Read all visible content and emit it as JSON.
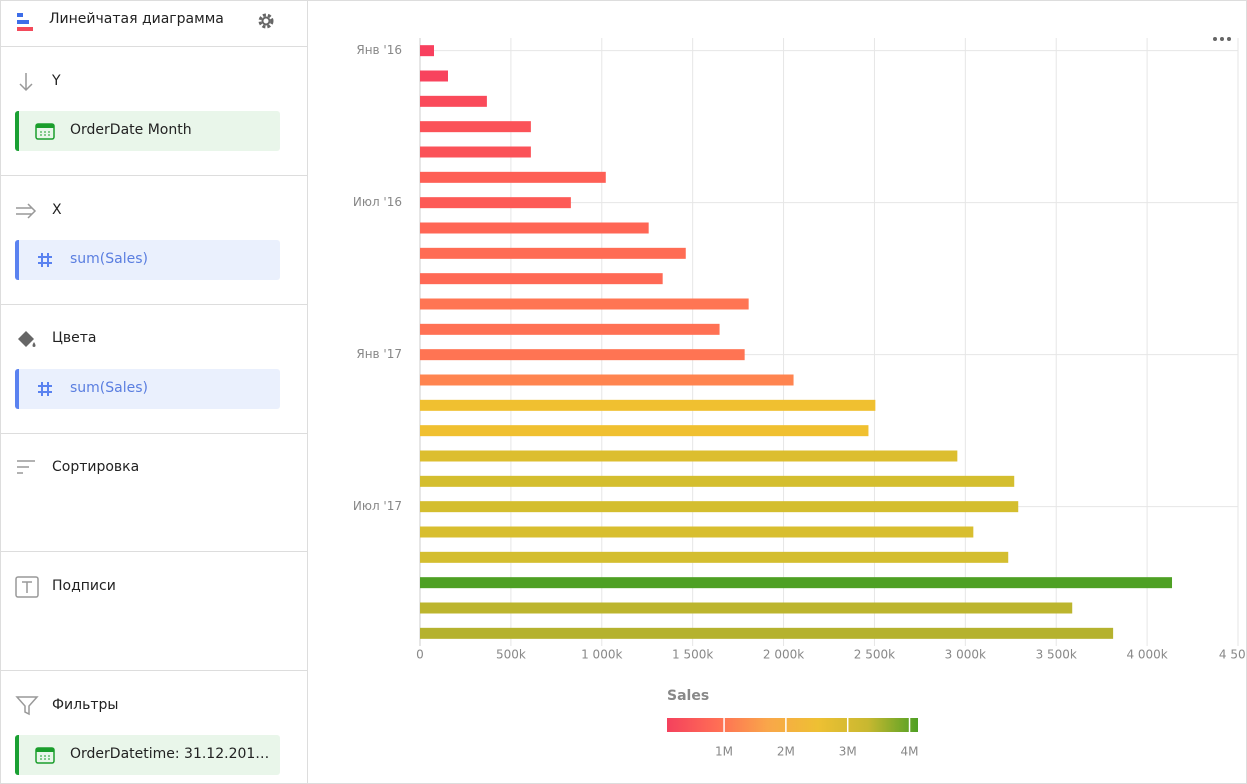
{
  "sidebar": {
    "title": "Линейчатая диаграмма",
    "sections": [
      {
        "label": "Y",
        "item": "OrderDate Month"
      },
      {
        "label": "X",
        "item": "sum(Sales)"
      },
      {
        "label": "Цвета",
        "item": "sum(Sales)"
      },
      {
        "label": "Сортировка"
      },
      {
        "label": "Подписи"
      },
      {
        "label": "Фильтры",
        "item": "OrderDatetime: 31.12.201…"
      }
    ]
  },
  "chart_data": {
    "type": "bar",
    "orientation": "horizontal",
    "categories": [
      "Янв '16",
      null,
      null,
      null,
      null,
      null,
      "Июл '16",
      null,
      null,
      null,
      null,
      null,
      "Янв '17",
      null,
      null,
      null,
      null,
      null,
      "Июл '17",
      null,
      null,
      null,
      null,
      null
    ],
    "series": [
      {
        "name": "Sales",
        "values": [
          77000,
          154000,
          368000,
          610000,
          610000,
          1022000,
          830000,
          1258000,
          1462000,
          1335000,
          1808000,
          1648000,
          1786000,
          2055000,
          2505000,
          2467000,
          2956000,
          3269000,
          3291000,
          3044000,
          3236000,
          4137000,
          3588000,
          3813000
        ],
        "colors": [
          "#f8405e",
          "#f8435d",
          "#fa4a5a",
          "#fb5258",
          "#fb5258",
          "#fe5f55",
          "#fd5a56",
          "#ff6655",
          "#ff6c54",
          "#ff6955",
          "#ff7553",
          "#ff7154",
          "#ff7453",
          "#ff8450",
          "#f0c030",
          "#f0c030",
          "#dcbe2f",
          "#d4be2f",
          "#d4be2f",
          "#d8be2f",
          "#d4be2f",
          "#4ea024",
          "#bcb52e",
          "#b5b22e"
        ]
      }
    ],
    "xlim": [
      0,
      4500000
    ],
    "xticks": [
      {
        "value": 0,
        "label": "0"
      },
      {
        "value": 500000,
        "label": "500k"
      },
      {
        "value": 1000000,
        "label": "1 000k"
      },
      {
        "value": 1500000,
        "label": "1 500k"
      },
      {
        "value": 2000000,
        "label": "2 000k"
      },
      {
        "value": 2500000,
        "label": "2 500k"
      },
      {
        "value": 3000000,
        "label": "3 000k"
      },
      {
        "value": 3500000,
        "label": "3 500k"
      },
      {
        "value": 4000000,
        "label": "4 000k"
      },
      {
        "value": 4500000,
        "label": "4 50..."
      }
    ],
    "grid": true,
    "colorscale": [
      "#f4415d",
      "#ff6d55",
      "#f9a64a",
      "#eec033",
      "#c8b830",
      "#4ea024"
    ],
    "legend_ticks": [
      {
        "value": 1000000,
        "label": "1M"
      },
      {
        "value": 2000000,
        "label": "2M"
      },
      {
        "value": 3000000,
        "label": "3M"
      },
      {
        "value": 4000000,
        "label": "4M"
      }
    ]
  }
}
